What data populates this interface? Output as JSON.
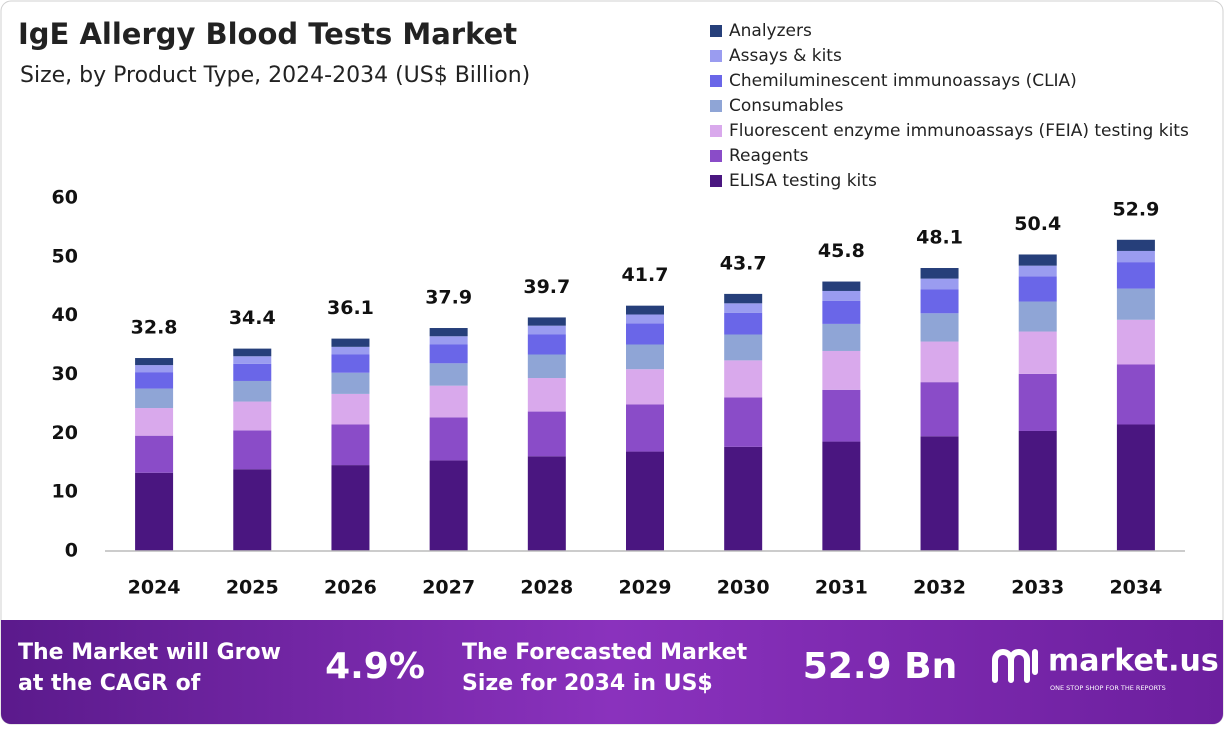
{
  "chart_data": {
    "type": "stacked_bar",
    "title": "IgE Allergy Blood Tests Market",
    "subtitle": "Size, by Product Type, 2024-2034 (US$ Billion)",
    "categories": [
      "2024",
      "2025",
      "2026",
      "2027",
      "2028",
      "2029",
      "2030",
      "2031",
      "2032",
      "2033",
      "2034"
    ],
    "series": [
      {
        "name": "ELISA testing kits",
        "color": "#4a1680",
        "values": [
          13.3,
          13.9,
          14.6,
          15.4,
          16.1,
          16.9,
          17.7,
          18.6,
          19.5,
          20.4,
          21.5
        ]
      },
      {
        "name": "Reagents",
        "color": "#8a4cc8",
        "values": [
          6.3,
          6.6,
          6.9,
          7.3,
          7.6,
          8.0,
          8.4,
          8.8,
          9.2,
          9.7,
          10.2
        ]
      },
      {
        "name": "Fluorescent enzyme immunoassays (FEIA) testing kits",
        "color": "#d9a9ec",
        "values": [
          4.7,
          4.9,
          5.2,
          5.4,
          5.7,
          6.0,
          6.3,
          6.6,
          6.9,
          7.2,
          7.6
        ]
      },
      {
        "name": "Consumables",
        "color": "#8fa5d6",
        "values": [
          3.3,
          3.5,
          3.6,
          3.8,
          4.0,
          4.2,
          4.4,
          4.6,
          4.8,
          5.1,
          5.3
        ]
      },
      {
        "name": "Chemiluminescent immunoassays (CLIA)",
        "color": "#6a66e8",
        "values": [
          2.8,
          2.9,
          3.1,
          3.2,
          3.4,
          3.6,
          3.7,
          3.9,
          4.1,
          4.3,
          4.5
        ]
      },
      {
        "name": "Assays & kits",
        "color": "#9a9cf0",
        "values": [
          1.2,
          1.3,
          1.3,
          1.4,
          1.5,
          1.5,
          1.6,
          1.7,
          1.8,
          1.8,
          1.9
        ]
      },
      {
        "name": "Analyzers",
        "color": "#263f7a",
        "values": [
          1.2,
          1.3,
          1.4,
          1.4,
          1.4,
          1.5,
          1.6,
          1.6,
          1.8,
          1.9,
          1.9
        ]
      }
    ],
    "totals": [
      32.8,
      34.4,
      36.1,
      37.9,
      39.7,
      41.7,
      43.7,
      45.8,
      48.1,
      50.4,
      52.9
    ],
    "ylim": [
      0,
      60
    ],
    "yticks": [
      0,
      10,
      20,
      30,
      40,
      50,
      60
    ],
    "grid": false
  },
  "footer": {
    "cagr_text": [
      "The Market will Grow",
      "at the CAGR of"
    ],
    "cagr_value": "4.9%",
    "forecast_text": [
      "The Forecasted Market",
      "Size for 2034 in US$"
    ],
    "forecast_value": "52.9 Bn",
    "brand": "market.us",
    "tagline": "ONE STOP SHOP FOR THE REPORTS"
  }
}
